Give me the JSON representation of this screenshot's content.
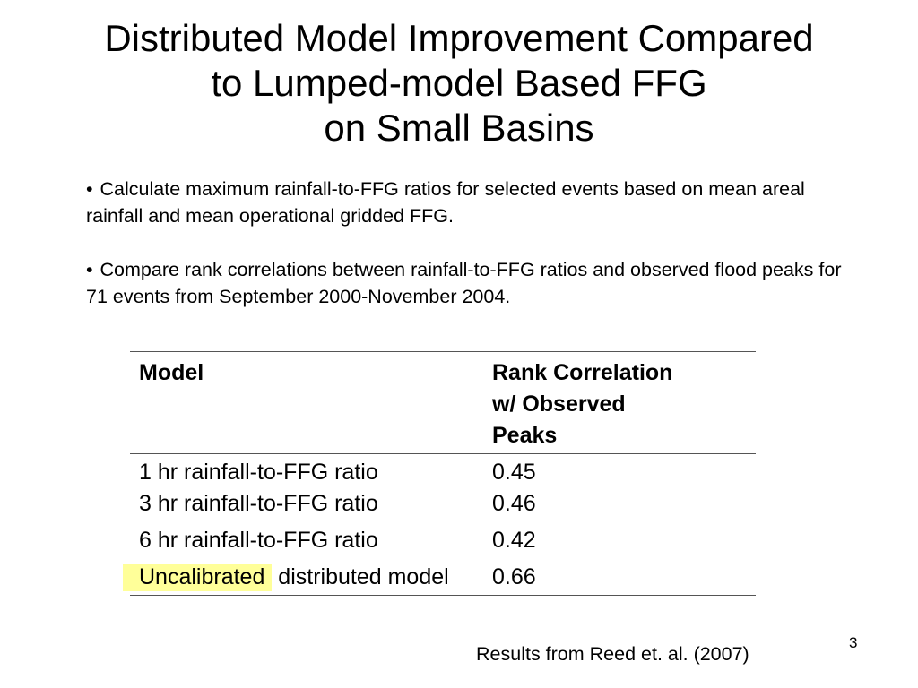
{
  "title": {
    "line1": "Distributed Model Improvement Compared",
    "line2": "to Lumped-model Based FFG",
    "line3": "on Small Basins"
  },
  "bullets": [
    {
      "marker": "•",
      "text": "Calculate maximum rainfall-to-FFG ratios for selected events based on mean areal rainfall and mean operational gridded FFG."
    },
    {
      "marker": "•",
      "text": "Compare rank correlations between rainfall-to-FFG ratios and observed flood peaks for 71 events from September 2000-November 2004."
    }
  ],
  "table": {
    "headers": {
      "model": "Model",
      "rank_line1": "Rank Correlation",
      "rank_line2": "w/ Observed",
      "rank_line3": "Peaks"
    },
    "rows": [
      {
        "model": "1 hr rainfall-to-FFG ratio",
        "value": "0.45"
      },
      {
        "model": "3 hr rainfall-to-FFG ratio",
        "value": "0.46"
      },
      {
        "model": "6 hr rainfall-to-FFG ratio",
        "value": "0.42"
      },
      {
        "model_highlight": "Uncalibrated",
        "model_rest": " distributed model",
        "value": "0.66"
      }
    ],
    "highlight_color": "#ffff99"
  },
  "caption": "Results from Reed et. al. (2007)",
  "page_number": "3"
}
